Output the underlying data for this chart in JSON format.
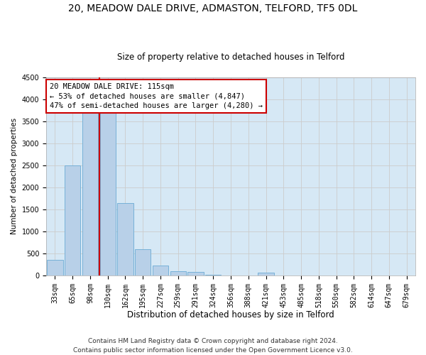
{
  "title1": "20, MEADOW DALE DRIVE, ADMASTON, TELFORD, TF5 0DL",
  "title2": "Size of property relative to detached houses in Telford",
  "xlabel": "Distribution of detached houses by size in Telford",
  "ylabel": "Number of detached properties",
  "categories": [
    "33sqm",
    "65sqm",
    "98sqm",
    "130sqm",
    "162sqm",
    "195sqm",
    "227sqm",
    "259sqm",
    "291sqm",
    "324sqm",
    "356sqm",
    "388sqm",
    "421sqm",
    "453sqm",
    "485sqm",
    "518sqm",
    "550sqm",
    "582sqm",
    "614sqm",
    "647sqm",
    "679sqm"
  ],
  "values": [
    350,
    2500,
    3800,
    3800,
    1650,
    600,
    230,
    100,
    75,
    10,
    5,
    5,
    60,
    5,
    5,
    5,
    5,
    5,
    5,
    5,
    5
  ],
  "bar_color": "#b8d0e8",
  "bar_edge_color": "#6aaad4",
  "vline_color": "#cc0000",
  "annotation_line1": "20 MEADOW DALE DRIVE: 115sqm",
  "annotation_line2": "← 53% of detached houses are smaller (4,847)",
  "annotation_line3": "47% of semi-detached houses are larger (4,280) →",
  "annotation_box_color": "#ffffff",
  "annotation_box_edge": "#cc0000",
  "ylim": [
    0,
    4500
  ],
  "yticks": [
    0,
    500,
    1000,
    1500,
    2000,
    2500,
    3000,
    3500,
    4000,
    4500
  ],
  "grid_color": "#cccccc",
  "bg_color": "#d6e8f5",
  "footer_line1": "Contains HM Land Registry data © Crown copyright and database right 2024.",
  "footer_line2": "Contains public sector information licensed under the Open Government Licence v3.0.",
  "title1_fontsize": 10,
  "title2_fontsize": 8.5,
  "xlabel_fontsize": 8.5,
  "ylabel_fontsize": 7.5,
  "tick_fontsize": 7,
  "footer_fontsize": 6.5,
  "annot_fontsize": 7.5
}
